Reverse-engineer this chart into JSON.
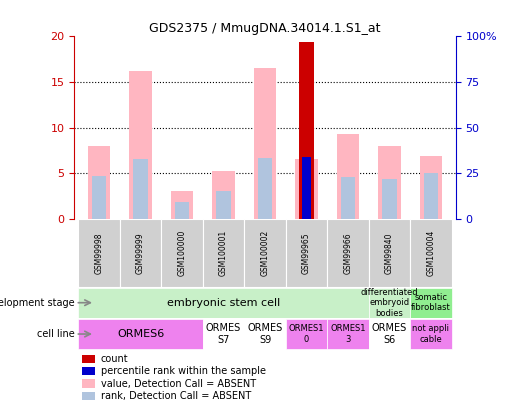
{
  "title": "GDS2375 / MmugDNA.34014.1.S1_at",
  "samples": [
    "GSM99998",
    "GSM99999",
    "GSM100000",
    "GSM100001",
    "GSM100002",
    "GSM99965",
    "GSM99966",
    "GSM99840",
    "GSM100004"
  ],
  "count_values": [
    null,
    null,
    null,
    null,
    null,
    19.4,
    null,
    null,
    null
  ],
  "percentile_rank": [
    null,
    null,
    null,
    null,
    null,
    6.8,
    null,
    null,
    null
  ],
  "absent_value": [
    8.0,
    16.2,
    3.0,
    5.2,
    16.5,
    6.6,
    9.3,
    8.0,
    6.9
  ],
  "absent_rank": [
    4.7,
    6.6,
    1.8,
    3.0,
    6.7,
    6.5,
    4.6,
    4.4,
    5.0
  ],
  "ylim": [
    0,
    20
  ],
  "yticks_left": [
    0,
    5,
    10,
    15,
    20
  ],
  "yticks_right_vals": [
    0,
    25,
    50,
    75,
    100
  ],
  "yticks_right_labels": [
    "0",
    "25",
    "50",
    "75",
    "100%"
  ],
  "absent_bar_width": 0.55,
  "rank_bar_width": 0.35,
  "count_bar_width": 0.35,
  "pct_bar_width": 0.2,
  "absent_color": "#ffb6c1",
  "absent_rank_color": "#b0c4de",
  "count_color": "#cc0000",
  "percentile_color": "#0000cc",
  "axis_color_left": "#cc0000",
  "axis_color_right": "#0000cc",
  "dev_stage_regions": [
    {
      "label": "embryonic stem cell",
      "start": 0,
      "end": 8,
      "color": "#c8f0c8"
    },
    {
      "label": "differentiated\nembryoid\nbodies",
      "start": 7,
      "end": 8,
      "color": "#c8f0c8"
    },
    {
      "label": "somatic\nfibroblast",
      "start": 8,
      "end": 9,
      "color": "#90ee90"
    }
  ],
  "dev_stage_boxes": [
    {
      "label": "embryonic stem cell",
      "start": 0,
      "end": 7,
      "color": "#c8f0c8",
      "fontsize": 8
    },
    {
      "label": "differentiated\nembryoid\nbodies",
      "start": 7,
      "end": 8,
      "color": "#c8f0c8",
      "fontsize": 6
    },
    {
      "label": "somatic\nfibroblast",
      "start": 8,
      "end": 9,
      "color": "#90ee90",
      "fontsize": 6
    }
  ],
  "cell_line_boxes": [
    {
      "label": "ORMES6",
      "start": 0,
      "end": 3,
      "color": "#ee82ee",
      "fontsize": 8
    },
    {
      "label": "ORMES\nS7",
      "start": 3,
      "end": 4,
      "color": "#ffffff",
      "fontsize": 7
    },
    {
      "label": "ORMES\nS9",
      "start": 4,
      "end": 5,
      "color": "#ffffff",
      "fontsize": 7
    },
    {
      "label": "ORMES1\n0",
      "start": 5,
      "end": 6,
      "color": "#ee82ee",
      "fontsize": 6
    },
    {
      "label": "ORMES1\n3",
      "start": 6,
      "end": 7,
      "color": "#ee82ee",
      "fontsize": 6
    },
    {
      "label": "ORMES\nS6",
      "start": 7,
      "end": 8,
      "color": "#ffffff",
      "fontsize": 7
    },
    {
      "label": "not appli\ncable",
      "start": 8,
      "end": 9,
      "color": "#ee82ee",
      "fontsize": 6
    }
  ],
  "legend_items": [
    {
      "color": "#cc0000",
      "label": "count"
    },
    {
      "color": "#0000cc",
      "label": "percentile rank within the sample"
    },
    {
      "color": "#ffb6c1",
      "label": "value, Detection Call = ABSENT"
    },
    {
      "color": "#b0c4de",
      "label": "rank, Detection Call = ABSENT"
    }
  ]
}
